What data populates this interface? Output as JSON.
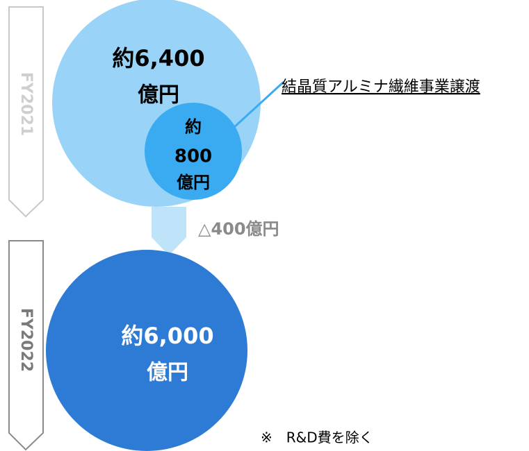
{
  "periods": {
    "fy2021": "FY2021",
    "fy2022": "FY2022"
  },
  "fy2021_circle": {
    "line1": "約6,400",
    "line2": "億円"
  },
  "divested_circle": {
    "line1": "約",
    "line2": "800",
    "line3": "億円"
  },
  "divested_label": "結晶質アルミナ繊維事業譲渡",
  "change": "△400億円",
  "fy2022_circle": {
    "line1": "約6,000",
    "line2": "億円"
  },
  "note": "※　R&D費を除く"
}
